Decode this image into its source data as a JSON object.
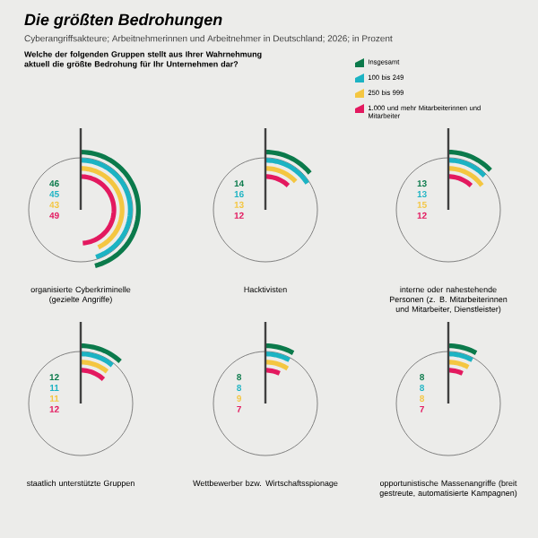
{
  "chart_data": [
    {
      "type": "other",
      "title": "Die größten Bedrohungen",
      "subtitle": "Cyberangriffsakteure; Arbeitnehmerinnen und Arbeitnehmer in Deutschland; 2026; in Prozent",
      "annotations": [
        "Welche der folgenden Gruppen stellt aus Ihrer Wahrnehmung aktuell die größte Bedrohung für Ihr Unternehmen dar?"
      ],
      "legend": "top right",
      "data_labels": true,
      "categories": [
        "organisierte Cyberkriminelle (gezielte Angriffe)"
      ],
      "series": [
        {
          "name": "Insgesamt",
          "color": "#0b7a4b",
          "values": [
            46
          ]
        },
        {
          "name": "100 bis 249",
          "color": "#1cb3c3",
          "values": [
            45
          ]
        },
        {
          "name": "250 bis 999",
          "color": "#f4c641",
          "values": [
            43
          ]
        },
        {
          "name": "1.000 und mehr Mitarbeiterinnen und Mitarbeiter",
          "color": "#e3195f",
          "values": [
            49
          ]
        }
      ]
    },
    {
      "type": "other",
      "data_labels": true,
      "categories": [
        "Hacktivisten"
      ],
      "series": [
        {
          "color": "#0b7a4b",
          "values": [
            14
          ]
        },
        {
          "color": "#1cb3c3",
          "values": [
            16
          ]
        },
        {
          "color": "#f4c641",
          "values": [
            13
          ]
        },
        {
          "color": "#e3195f",
          "values": [
            12
          ]
        }
      ]
    },
    {
      "type": "other",
      "data_labels": true,
      "categories": [
        "interne oder nahestehende Personen (z. B. Mitarbeiterinnen und Mitarbeiter, Dienstleister)"
      ],
      "series": [
        {
          "color": "#0b7a4b",
          "values": [
            13
          ]
        },
        {
          "color": "#1cb3c3",
          "values": [
            13
          ]
        },
        {
          "color": "#f4c641",
          "values": [
            15
          ]
        },
        {
          "color": "#e3195f",
          "values": [
            12
          ]
        }
      ]
    },
    {
      "type": "other",
      "data_labels": true,
      "categories": [
        "staatlich unterstützte Gruppen"
      ],
      "series": [
        {
          "color": "#0b7a4b",
          "values": [
            12
          ]
        },
        {
          "color": "#1cb3c3",
          "values": [
            11
          ]
        },
        {
          "color": "#f4c641",
          "values": [
            11
          ]
        },
        {
          "color": "#e3195f",
          "values": [
            12
          ]
        }
      ]
    },
    {
      "type": "other",
      "data_labels": true,
      "categories": [
        "Wettbewerber bzw. Wirtschaftsspionage"
      ],
      "series": [
        {
          "color": "#0b7a4b",
          "values": [
            8
          ]
        },
        {
          "color": "#1cb3c3",
          "values": [
            8
          ]
        },
        {
          "color": "#f4c641",
          "values": [
            9
          ]
        },
        {
          "color": "#e3195f",
          "values": [
            7
          ]
        }
      ]
    },
    {
      "type": "other",
      "data_labels": true,
      "categories": [
        "opportunistische Massenangriffe (breit gestreute, automatisierte Kampagnen)"
      ],
      "series": [
        {
          "color": "#0b7a4b",
          "values": [
            8
          ]
        },
        {
          "color": "#1cb3c3",
          "values": [
            8
          ]
        },
        {
          "color": "#f4c641",
          "values": [
            8
          ]
        },
        {
          "color": "#e3195f",
          "values": [
            7
          ]
        }
      ]
    }
  ]
}
